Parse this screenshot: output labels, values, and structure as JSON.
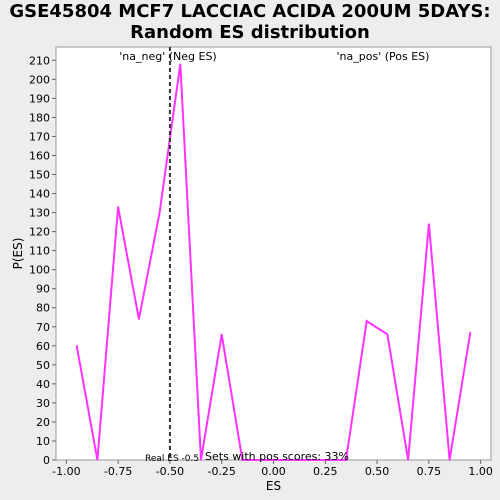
{
  "chart_data": {
    "type": "line",
    "title": "GSE45804 MCF7 LACCIAC ACIDA 200UM 5DAYS:\nRandom ES distribution",
    "xlabel": "ES",
    "ylabel": "P(ES)",
    "xlim": [
      -1.05,
      1.05
    ],
    "ylim": [
      0,
      217
    ],
    "x_ticks": [
      "-1.00",
      "-0.75",
      "-0.50",
      "-0.25",
      "0.00",
      "0.25",
      "0.50",
      "0.75",
      "1.00"
    ],
    "y_ticks": [
      0,
      10,
      20,
      30,
      40,
      50,
      60,
      70,
      80,
      90,
      100,
      110,
      120,
      130,
      140,
      150,
      160,
      170,
      180,
      190,
      200,
      210
    ],
    "grid": false,
    "series": [
      {
        "color": "#ff33ff",
        "x": [
          -0.95,
          -0.85,
          -0.75,
          -0.65,
          -0.55,
          -0.45,
          -0.35,
          -0.25,
          -0.15,
          -0.05,
          0.05,
          0.15,
          0.25,
          0.35,
          0.45,
          0.55,
          0.65,
          0.75,
          0.85,
          0.95
        ],
        "y": [
          60,
          0,
          133,
          74,
          130,
          208,
          0,
          66,
          0,
          0,
          0,
          0,
          0,
          0,
          73,
          66,
          0,
          124,
          0,
          67
        ]
      }
    ],
    "real_es": {
      "value": -0.5,
      "label": "Real ES -0.5"
    },
    "annotations": {
      "neg": {
        "text": "'na_neg' (Neg ES)",
        "color": "#3333cc"
      },
      "pos": {
        "text": "'na_pos' (Pos ES)",
        "color": "#cc3333"
      },
      "footer": "Sets with pos scores: 33%"
    }
  }
}
